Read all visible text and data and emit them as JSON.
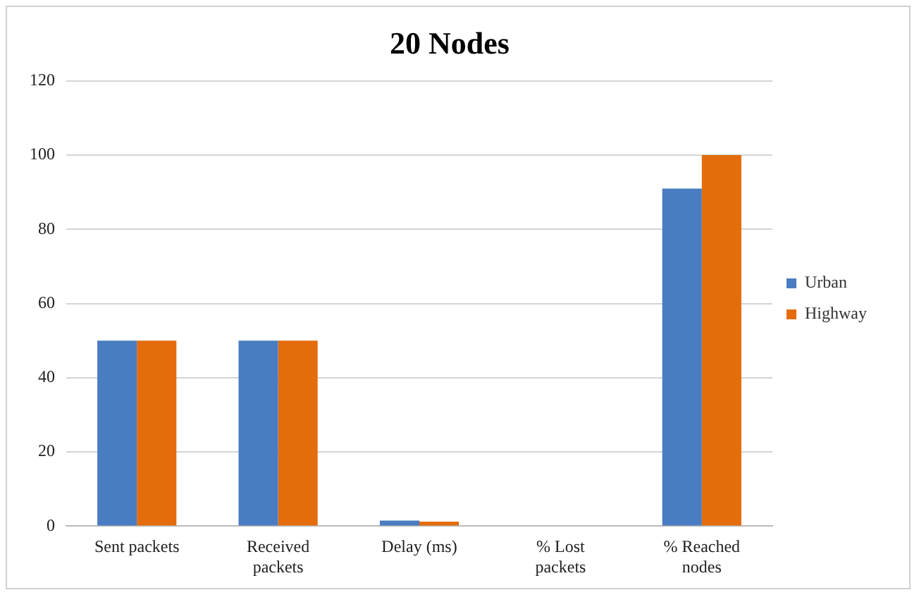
{
  "chart_data": {
    "type": "bar",
    "title": "20 Nodes",
    "categories": [
      "Sent packets",
      "Received packets",
      "Delay (ms)",
      "% Lost packets",
      "% Reached nodes"
    ],
    "series": [
      {
        "name": "Urban",
        "color": "#4a7cc1",
        "values": [
          50,
          50,
          1.5,
          0,
          91
        ]
      },
      {
        "name": "Highway",
        "color": "#e46c0a",
        "values": [
          50,
          50,
          1.2,
          0,
          100
        ]
      }
    ],
    "ylim": [
      0,
      120
    ],
    "yticks": [
      0,
      20,
      40,
      60,
      80,
      100,
      120
    ],
    "grid": "y",
    "legend": "right"
  }
}
